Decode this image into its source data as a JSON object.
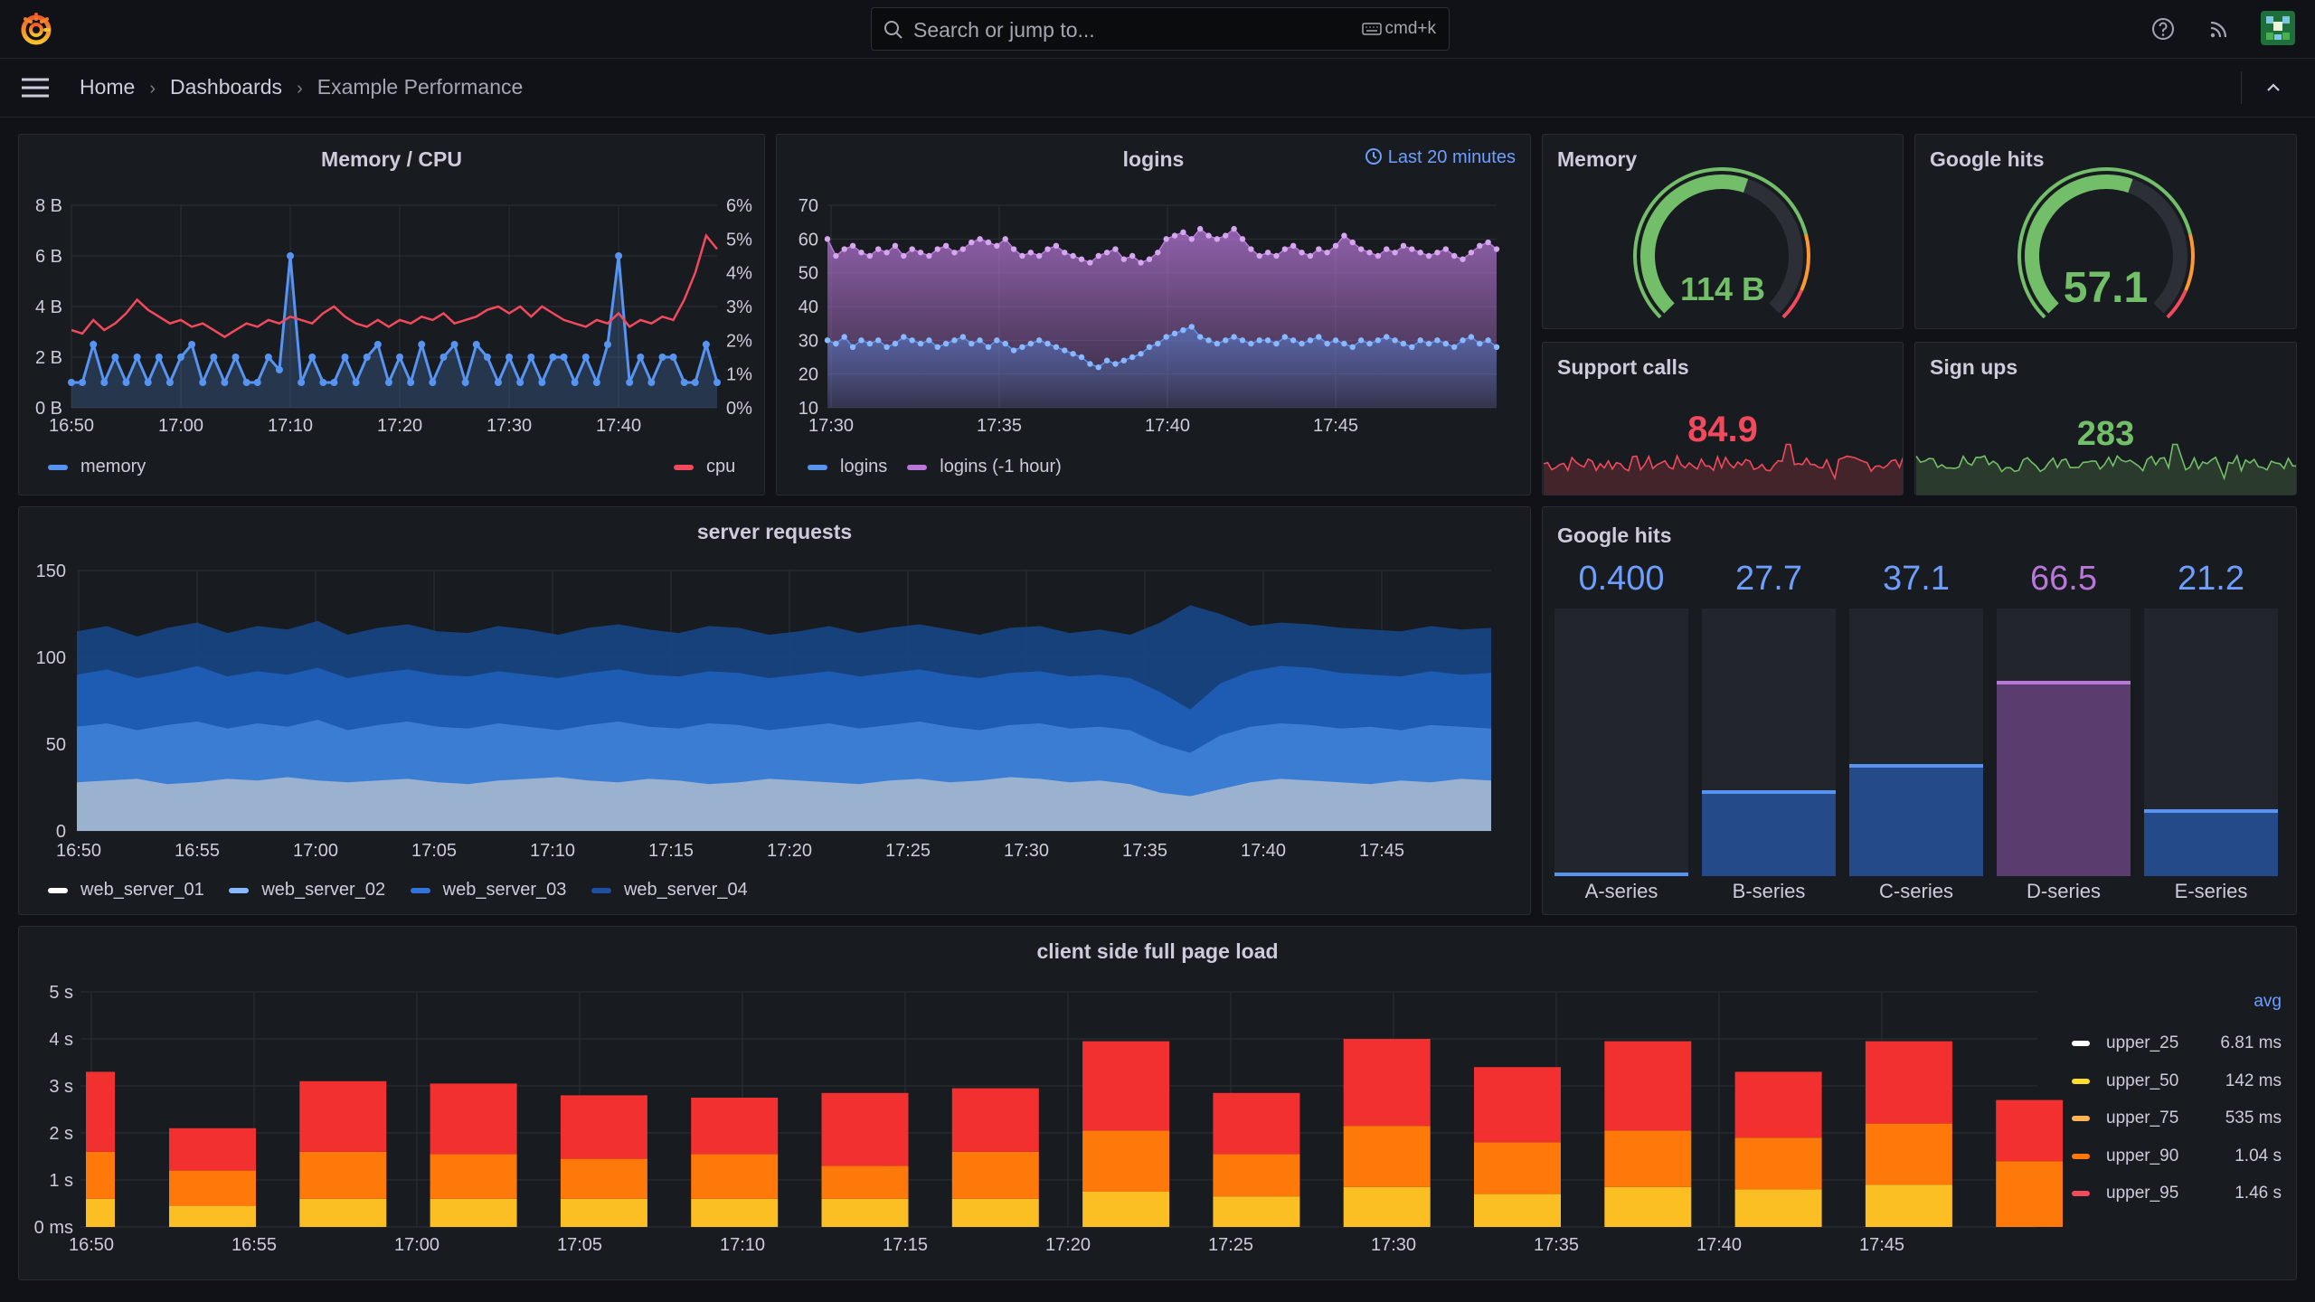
{
  "topbar": {
    "search_placeholder": "Search or jump to...",
    "shortcut": "cmd+k",
    "icons": [
      "grafana-logo-icon",
      "search-icon",
      "keyboard-icon",
      "help-icon",
      "rss-icon",
      "avatar"
    ]
  },
  "breadcrumb": {
    "items": [
      "Home",
      "Dashboards",
      "Example Performance"
    ]
  },
  "colors": {
    "background": "#111217",
    "panel": "#181b1f",
    "blue": "#5794f2",
    "red": "#f2495c",
    "purple": "#b877d9",
    "green": "#73bf69",
    "orange": "#ff780a",
    "yellow": "#fade2a"
  },
  "panels": {
    "memcpu": {
      "title": "Memory / CPU",
      "left_ticks": [
        "8 B",
        "6 B",
        "4 B",
        "2 B",
        "0 B"
      ],
      "right_ticks": [
        "6%",
        "5%",
        "4%",
        "3%",
        "2%",
        "1%",
        "0%"
      ],
      "x_ticks": [
        "16:50",
        "17:00",
        "17:10",
        "17:20",
        "17:30",
        "17:40"
      ],
      "legend": {
        "memory": "memory",
        "cpu": "cpu"
      }
    },
    "logins": {
      "title": "logins",
      "time_badge": "Last 20 minutes",
      "y_ticks": [
        "70",
        "60",
        "50",
        "40",
        "30",
        "20",
        "10"
      ],
      "x_ticks": [
        "17:30",
        "17:35",
        "17:40",
        "17:45"
      ],
      "legend": {
        "logins": "logins",
        "logins_prev": "logins (-1 hour)"
      }
    },
    "memory_gauge": {
      "title": "Memory",
      "value": "114 B",
      "fraction": 0.57,
      "color": "#73bf69"
    },
    "google_gauge": {
      "title": "Google hits",
      "value": "57.1",
      "fraction": 0.571,
      "color": "#73bf69"
    },
    "support_calls": {
      "title": "Support calls",
      "value": "84.9",
      "color": "#f2495c"
    },
    "sign_ups": {
      "title": "Sign ups",
      "value": "283",
      "color": "#73bf69"
    },
    "server_requests": {
      "title": "server requests",
      "y_ticks": [
        "150",
        "100",
        "50",
        "0"
      ],
      "x_ticks": [
        "16:50",
        "16:55",
        "17:00",
        "17:05",
        "17:10",
        "17:15",
        "17:20",
        "17:25",
        "17:30",
        "17:35",
        "17:40",
        "17:45"
      ],
      "legend": [
        "web_server_01",
        "web_server_02",
        "web_server_03",
        "web_server_04"
      ]
    },
    "google_bars": {
      "title": "Google hits",
      "bars": [
        {
          "name": "A-series",
          "value": "0.400",
          "level": 0.01,
          "color": "#5794f2"
        },
        {
          "name": "B-series",
          "value": "27.7",
          "level": 0.32,
          "color": "#5794f2"
        },
        {
          "name": "C-series",
          "value": "37.1",
          "level": 0.42,
          "color": "#5794f2"
        },
        {
          "name": "D-series",
          "value": "66.5",
          "level": 0.73,
          "color": "#b877d9"
        },
        {
          "name": "E-series",
          "value": "21.2",
          "level": 0.25,
          "color": "#5794f2"
        }
      ]
    },
    "page_load": {
      "title": "client side full page load",
      "y_ticks": [
        "5 s",
        "4 s",
        "3 s",
        "2 s",
        "1 s",
        "0 ms"
      ],
      "x_ticks": [
        "16:50",
        "16:55",
        "17:00",
        "17:05",
        "17:10",
        "17:15",
        "17:20",
        "17:25",
        "17:30",
        "17:35",
        "17:40",
        "17:45"
      ],
      "legend_header": "avg",
      "legend": [
        {
          "name": "upper_25",
          "avg": "6.81 ms",
          "color": "#ffffff"
        },
        {
          "name": "upper_50",
          "avg": "142 ms",
          "color": "#fade2a"
        },
        {
          "name": "upper_75",
          "avg": "535 ms",
          "color": "#ffb357"
        },
        {
          "name": "upper_90",
          "avg": "1.04 s",
          "color": "#ff780a"
        },
        {
          "name": "upper_95",
          "avg": "1.46 s",
          "color": "#f2495c"
        }
      ]
    }
  },
  "chart_data": [
    {
      "type": "line",
      "title": "Memory / CPU",
      "x": [
        "16:50",
        "16:51",
        "16:52",
        "16:53",
        "16:54",
        "16:55",
        "16:56",
        "16:57",
        "16:58",
        "16:59",
        "17:00",
        "17:01",
        "17:02",
        "17:03",
        "17:04",
        "17:05",
        "17:06",
        "17:07",
        "17:08",
        "17:09",
        "17:10",
        "17:11",
        "17:12",
        "17:13",
        "17:14",
        "17:15",
        "17:16",
        "17:17",
        "17:18",
        "17:19",
        "17:20",
        "17:21",
        "17:22",
        "17:23",
        "17:24",
        "17:25",
        "17:26",
        "17:27",
        "17:28",
        "17:29",
        "17:30",
        "17:31",
        "17:32",
        "17:33",
        "17:34",
        "17:35",
        "17:36",
        "17:37",
        "17:38",
        "17:39",
        "17:40",
        "17:41",
        "17:42",
        "17:43",
        "17:44",
        "17:45",
        "17:46",
        "17:47",
        "17:48",
        "17:49"
      ],
      "series": [
        {
          "name": "memory",
          "axis": "left",
          "values": [
            1,
            1,
            2.5,
            1,
            2,
            1,
            2,
            1,
            2,
            1,
            2,
            2.5,
            1,
            2,
            1,
            2,
            1,
            1,
            2,
            1.5,
            6,
            1,
            2,
            1,
            1,
            2,
            1,
            2,
            2.5,
            1,
            2,
            1,
            2.5,
            1,
            2,
            2.5,
            1,
            2.5,
            2,
            1,
            2,
            1,
            2,
            1,
            2,
            2,
            1,
            2,
            1,
            2.5,
            6,
            1,
            2,
            1,
            2,
            2,
            1,
            1,
            2.5,
            1
          ]
        },
        {
          "name": "cpu",
          "axis": "right",
          "values": [
            2.3,
            2.2,
            2.6,
            2.3,
            2.5,
            2.8,
            3.2,
            2.9,
            2.7,
            2.5,
            2.6,
            2.4,
            2.5,
            2.3,
            2.1,
            2.3,
            2.5,
            2.4,
            2.6,
            2.5,
            2.7,
            2.6,
            2.5,
            2.8,
            3.0,
            2.7,
            2.5,
            2.4,
            2.6,
            2.4,
            2.6,
            2.5,
            2.7,
            2.6,
            2.8,
            2.5,
            2.6,
            2.7,
            2.9,
            3.0,
            2.8,
            3.0,
            2.7,
            3.0,
            2.8,
            2.6,
            2.5,
            2.4,
            2.6,
            2.5,
            2.8,
            2.4,
            2.6,
            2.5,
            2.7,
            2.6,
            3.2,
            4.0,
            5.1,
            4.7
          ]
        }
      ],
      "ylim_left": [
        0,
        8
      ],
      "ylim_right": [
        0,
        6
      ],
      "ylabel": "",
      "xlabel": ""
    },
    {
      "type": "area",
      "title": "logins",
      "x_range": [
        "17:28",
        "17:49"
      ],
      "series": [
        {
          "name": "logins",
          "values": [
            30,
            29,
            31,
            28,
            30,
            29,
            30,
            28,
            29,
            31,
            30,
            29,
            30,
            28,
            29,
            30,
            31,
            29,
            30,
            28,
            30,
            29,
            27,
            28,
            29,
            30,
            29,
            28,
            27,
            26,
            25,
            23,
            22,
            24,
            23,
            24,
            25,
            26,
            28,
            29,
            31,
            32,
            33,
            34,
            31,
            30,
            29,
            30,
            31,
            30,
            29,
            30,
            30,
            29,
            31,
            30,
            29,
            30,
            31,
            29,
            30,
            29,
            28,
            30,
            29,
            30,
            31,
            30,
            29,
            28,
            30,
            29,
            30,
            29,
            28,
            30,
            31,
            29,
            30,
            28
          ]
        },
        {
          "name": "logins (-1 hour)",
          "values": [
            60,
            55,
            57,
            58,
            56,
            55,
            57,
            56,
            58,
            55,
            57,
            56,
            55,
            57,
            58,
            56,
            57,
            59,
            60,
            59,
            58,
            60,
            57,
            55,
            56,
            55,
            57,
            58,
            56,
            55,
            54,
            53,
            55,
            56,
            57,
            54,
            55,
            53,
            54,
            56,
            60,
            61,
            62,
            60,
            63,
            61,
            60,
            61,
            63,
            60,
            57,
            55,
            56,
            55,
            57,
            58,
            56,
            55,
            57,
            56,
            58,
            61,
            59,
            57,
            56,
            55,
            57,
            56,
            58,
            57,
            56,
            55,
            56,
            57,
            55,
            54,
            56,
            58,
            59,
            57
          ]
        }
      ],
      "ylim": [
        10,
        70
      ]
    },
    {
      "type": "area",
      "title": "server requests",
      "x_range": [
        "16:48",
        "17:50"
      ],
      "series": [
        {
          "name": "web_server_01",
          "values": [
            28,
            29,
            30,
            27,
            28,
            30,
            29,
            31,
            29,
            28,
            29,
            30,
            28,
            27,
            29,
            30,
            31,
            29,
            28,
            30,
            29,
            27,
            28,
            30,
            29,
            28,
            27,
            29,
            30,
            28,
            29,
            31,
            30,
            28,
            29,
            27,
            22,
            20,
            24,
            28,
            30,
            29,
            28,
            27,
            29,
            28,
            30,
            29
          ]
        },
        {
          "name": "web_server_02",
          "values": [
            60,
            62,
            58,
            61,
            63,
            59,
            62,
            60,
            64,
            58,
            61,
            63,
            60,
            59,
            62,
            60,
            58,
            61,
            63,
            60,
            59,
            62,
            61,
            58,
            60,
            62,
            59,
            61,
            63,
            60,
            58,
            61,
            62,
            59,
            60,
            58,
            50,
            45,
            55,
            60,
            62,
            61,
            59,
            60,
            58,
            61,
            60,
            59
          ]
        },
        {
          "name": "web_server_03",
          "values": [
            90,
            93,
            88,
            91,
            95,
            89,
            92,
            90,
            94,
            88,
            91,
            93,
            90,
            89,
            92,
            90,
            88,
            91,
            93,
            90,
            89,
            92,
            91,
            88,
            90,
            92,
            89,
            91,
            93,
            90,
            88,
            91,
            92,
            89,
            90,
            88,
            80,
            70,
            85,
            92,
            95,
            94,
            91,
            90,
            89,
            92,
            90,
            91
          ]
        },
        {
          "name": "web_server_04",
          "values": [
            115,
            118,
            112,
            117,
            120,
            114,
            118,
            116,
            121,
            113,
            117,
            119,
            115,
            114,
            118,
            116,
            113,
            117,
            119,
            116,
            114,
            118,
            117,
            113,
            115,
            118,
            114,
            117,
            119,
            116,
            113,
            117,
            118,
            114,
            116,
            113,
            120,
            130,
            125,
            118,
            120,
            119,
            117,
            116,
            115,
            118,
            116,
            117
          ]
        }
      ],
      "ylim": [
        0,
        150
      ]
    },
    {
      "type": "bar",
      "title": "Google hits",
      "categories": [
        "A-series",
        "B-series",
        "C-series",
        "D-series",
        "E-series"
      ],
      "values": [
        0.4,
        27.7,
        37.1,
        66.5,
        21.2
      ]
    },
    {
      "type": "bar",
      "title": "client side full page load",
      "categories": [
        "16:50",
        "16:52",
        "16:56",
        "17:00",
        "17:04",
        "17:08",
        "17:12",
        "17:16",
        "17:20",
        "17:24",
        "17:28",
        "17:32",
        "17:36",
        "17:40",
        "17:44",
        "17:48"
      ],
      "series": [
        {
          "name": "upper_25",
          "values": [
            0.6,
            0.45,
            0.6,
            0.6,
            0.6,
            0.6,
            0.6,
            0.6,
            0.75,
            0.65,
            0.85,
            0.7,
            0.85,
            0.8,
            0.9,
            0.0
          ]
        },
        {
          "name": "upper_90",
          "values": [
            1.0,
            0.75,
            1.0,
            0.95,
            0.85,
            0.95,
            0.7,
            1.0,
            1.3,
            0.9,
            1.3,
            1.1,
            1.2,
            1.1,
            1.3,
            1.4
          ]
        },
        {
          "name": "upper_95",
          "values": [
            1.7,
            0.9,
            1.5,
            1.5,
            1.35,
            1.2,
            1.55,
            1.35,
            1.9,
            1.3,
            1.85,
            1.6,
            1.9,
            1.4,
            1.75,
            1.3
          ]
        }
      ],
      "ylim": [
        0,
        5
      ],
      "ylabel": "",
      "xlabel": ""
    }
  ]
}
